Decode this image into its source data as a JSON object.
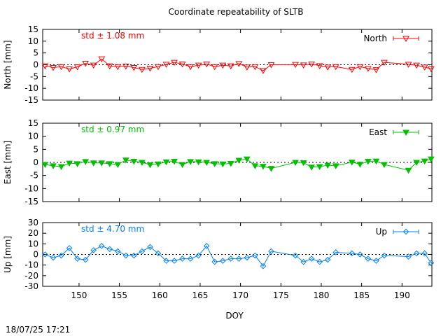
{
  "title": "Coordinate repeatability of SLTB",
  "timestamp": "18/07/25 17:21",
  "xlabel": "DOY",
  "colors": {
    "north": "#ff0000",
    "east": "#00c000",
    "up": "#0080ff"
  },
  "chart_data": [
    {
      "type": "line",
      "name": "North",
      "ylabel": "North [mm]",
      "std_label": "std ± 1.08 mm",
      "xlim": [
        145.5,
        193.7
      ],
      "ylim": [
        -15,
        15
      ],
      "yticks": [
        -15,
        -10,
        -5,
        0,
        5,
        10,
        15
      ],
      "xticks": [
        150,
        155,
        160,
        165,
        170,
        175,
        180,
        185,
        190
      ],
      "x": [
        145.8,
        146.8,
        147.8,
        148.8,
        149.8,
        150.8,
        151.8,
        152.8,
        153.8,
        154.8,
        155.8,
        156.8,
        157.8,
        158.8,
        159.8,
        160.8,
        161.8,
        162.8,
        163.8,
        164.8,
        165.8,
        166.8,
        167.8,
        168.8,
        169.8,
        170.8,
        171.8,
        172.8,
        173.8,
        176.8,
        177.8,
        178.8,
        179.8,
        180.8,
        181.8,
        183.8,
        184.8,
        185.8,
        186.8,
        187.8,
        190.8,
        191.8,
        192.8,
        193.6
      ],
      "y": [
        -0.5,
        -1.2,
        -0.8,
        -1.8,
        -0.9,
        0.6,
        -0.2,
        2.5,
        -0.5,
        -0.8,
        -0.6,
        -1.2,
        -2.0,
        -1.5,
        -0.8,
        0.2,
        1.0,
        0.3,
        -0.8,
        -0.2,
        0.3,
        -0.8,
        -0.2,
        -0.5,
        0.5,
        -1.0,
        -0.8,
        -2.5,
        0.0,
        0.1,
        -0.1,
        0.3,
        -0.4,
        -1.0,
        -0.8,
        -2.0,
        -0.8,
        -1.6,
        -2.1,
        1.0,
        0.2,
        -0.2,
        -1.0,
        -1.7
      ]
    },
    {
      "type": "line",
      "name": "East",
      "ylabel": "East [mm]",
      "std_label": "std ± 0.97 mm",
      "xlim": [
        145.5,
        193.7
      ],
      "ylim": [
        -15,
        15
      ],
      "yticks": [
        -15,
        -10,
        -5,
        0,
        5,
        10,
        15
      ],
      "xticks": [
        150,
        155,
        160,
        165,
        170,
        175,
        180,
        185,
        190
      ],
      "x": [
        145.8,
        146.8,
        147.8,
        148.8,
        149.8,
        150.8,
        151.8,
        152.8,
        153.8,
        154.8,
        155.8,
        156.8,
        157.8,
        158.8,
        159.8,
        160.8,
        161.8,
        162.8,
        163.8,
        164.8,
        165.8,
        166.8,
        167.8,
        168.8,
        169.8,
        170.8,
        171.8,
        172.8,
        173.8,
        176.8,
        177.8,
        178.8,
        179.8,
        180.8,
        181.8,
        183.8,
        184.8,
        185.8,
        186.8,
        187.8,
        190.8,
        191.8,
        192.8,
        193.6
      ],
      "y": [
        -0.8,
        -1.3,
        -1.6,
        -0.3,
        -0.5,
        0.3,
        -0.2,
        -0.2,
        -0.5,
        -0.8,
        0.9,
        0.4,
        0.0,
        -0.9,
        -0.6,
        0.2,
        0.4,
        -0.8,
        0.3,
        0.2,
        0.0,
        -0.5,
        -0.6,
        -0.4,
        0.8,
        1.3,
        -1.3,
        -1.5,
        -2.3,
        0.0,
        -0.1,
        -1.8,
        -1.6,
        -1.1,
        -1.3,
        0.1,
        -0.7,
        0.4,
        0.5,
        -0.8,
        -3.0,
        0.0,
        0.5,
        1.3
      ]
    },
    {
      "type": "line",
      "name": "Up",
      "ylabel": "Up [mm]",
      "std_label": "std ± 4.70 mm",
      "xlim": [
        145.5,
        193.7
      ],
      "ylim": [
        -30,
        30
      ],
      "yticks": [
        -30,
        -20,
        -10,
        0,
        10,
        20,
        30
      ],
      "xticks": [
        150,
        155,
        160,
        165,
        170,
        175,
        180,
        185,
        190
      ],
      "x": [
        145.8,
        146.8,
        147.8,
        148.8,
        149.8,
        150.8,
        151.8,
        152.8,
        153.8,
        154.8,
        155.8,
        156.8,
        157.8,
        158.8,
        159.8,
        160.8,
        161.8,
        162.8,
        163.8,
        164.8,
        165.8,
        166.8,
        167.8,
        168.8,
        169.8,
        170.8,
        171.8,
        172.8,
        173.8,
        176.8,
        177.8,
        178.8,
        179.8,
        180.8,
        181.8,
        183.8,
        184.8,
        185.8,
        186.8,
        187.8,
        190.8,
        191.8,
        192.8,
        193.6
      ],
      "y": [
        0.0,
        -3.0,
        -1.0,
        6.0,
        -4.0,
        -5.0,
        4.0,
        8.0,
        5.0,
        3.0,
        -1.0,
        -1.0,
        3.0,
        7.0,
        1.0,
        -6.0,
        -6.0,
        -4.0,
        -4.0,
        -1.0,
        8.0,
        -7.0,
        -6.0,
        -4.0,
        -4.0,
        -3.0,
        -1.0,
        -11.0,
        3.0,
        -1.0,
        -7.0,
        -4.0,
        -7.0,
        -5.0,
        2.0,
        1.0,
        0.0,
        -4.0,
        -6.0,
        -1.0,
        -2.0,
        1.0,
        1.0,
        -8.0
      ]
    }
  ]
}
